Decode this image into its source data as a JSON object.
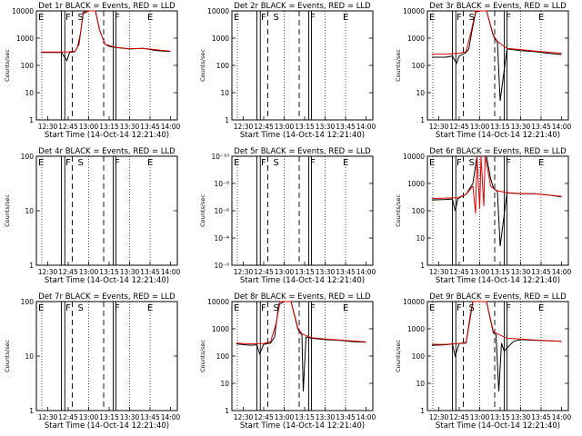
{
  "chart_data": [
    {
      "type": "line",
      "title": "Det 1r BLACK = Events, RED = LLD",
      "xlabel": "Start Time (14-Oct-14 12:21:40)",
      "ylabel": "Counts/sec",
      "yscale": "log",
      "ylim": [
        1,
        10000
      ],
      "yticks": [
        "1",
        "10",
        "100",
        "1000",
        "10000"
      ],
      "xticks": [
        "12:30",
        "12:45",
        "13:00",
        "13:15",
        "13:30",
        "13:45",
        "14:00"
      ],
      "xlim": [
        "12:21:40",
        "14:05"
      ],
      "markers": [
        "E",
        "F",
        "S",
        "F",
        "E"
      ],
      "events": {
        "time": [
          "12:25",
          "12:35",
          "12:40",
          "12:44",
          "12:46",
          "12:50",
          "12:52",
          "12:54",
          "12:56",
          "13:00",
          "13:05",
          "13:08",
          "13:12",
          "13:15",
          "13:20",
          "13:30",
          "13:40",
          "13:50",
          "14:00"
        ],
        "values": [
          300,
          300,
          300,
          150,
          300,
          320,
          500,
          1500,
          8000,
          10000,
          10000,
          2000,
          600,
          500,
          450,
          400,
          420,
          350,
          320
        ]
      },
      "lld": {
        "time": [
          "12:25",
          "12:35",
          "12:44",
          "12:50",
          "12:53",
          "12:56",
          "13:00",
          "13:05",
          "13:08",
          "13:12",
          "13:20",
          "13:30",
          "13:40",
          "14:00"
        ],
        "values": [
          310,
          310,
          310,
          330,
          600,
          9000,
          10000,
          10000,
          2000,
          600,
          460,
          410,
          420,
          330
        ]
      }
    },
    {
      "type": "line",
      "title": "Det 2r BLACK = Events, RED = LLD",
      "xlabel": "Start Time (14-Oct-14 12:21:40)",
      "ylabel": "Counts/sec",
      "yscale": "log",
      "ylim": [
        1,
        10000
      ],
      "yticks": [
        "1",
        "10",
        "100",
        "1000",
        "10000"
      ],
      "xticks": [
        "12:30",
        "12:45",
        "13:00",
        "13:15",
        "13:30",
        "13:45",
        "14:00"
      ],
      "xlim": [
        "12:21:40",
        "14:05"
      ],
      "markers": [
        "E",
        "F",
        "S",
        "F",
        "E"
      ]
    },
    {
      "type": "line",
      "title": "Det 3r BLACK = Events, RED = LLD",
      "xlabel": "Start Time (14-Oct-14 12:21:40)",
      "ylabel": "Counts/sec",
      "yscale": "log",
      "ylim": [
        1,
        10000
      ],
      "yticks": [
        "1",
        "10",
        "100",
        "1000",
        "10000"
      ],
      "xticks": [
        "12:30",
        "12:45",
        "13:00",
        "13:15",
        "13:30",
        "13:45",
        "14:00"
      ],
      "xlim": [
        "12:21:40",
        "14:05"
      ],
      "markers": [
        "E",
        "F",
        "S",
        "F",
        "E"
      ],
      "events": {
        "time": [
          "12:25",
          "12:35",
          "12:40",
          "12:43",
          "12:45",
          "12:50",
          "12:52",
          "12:54",
          "12:57",
          "13:00",
          "13:05",
          "13:10",
          "13:13",
          "13:15",
          "13:20",
          "13:30",
          "13:40",
          "13:50",
          "14:00"
        ],
        "values": [
          200,
          200,
          220,
          120,
          220,
          300,
          400,
          1500,
          9000,
          10000,
          10000,
          1200,
          700,
          5,
          400,
          350,
          320,
          280,
          250
        ]
      },
      "lld": {
        "time": [
          "12:25",
          "12:35",
          "12:45",
          "12:50",
          "12:54",
          "12:57",
          "13:00",
          "13:05",
          "13:10",
          "13:13",
          "13:20",
          "13:30",
          "13:40",
          "14:00"
        ],
        "values": [
          260,
          260,
          280,
          320,
          2000,
          10000,
          10000,
          10000,
          1300,
          750,
          420,
          380,
          340,
          280
        ]
      }
    },
    {
      "type": "line",
      "title": "Det 4r BLACK = Events, RED = LLD",
      "xlabel": "Start Time (14-Oct-14 12:21:40)",
      "ylabel": "Counts/sec",
      "yscale": "log",
      "ylim": [
        1,
        100
      ],
      "yticks": [
        "1",
        "10",
        "100"
      ],
      "xticks": [
        "12:30",
        "12:45",
        "13:00",
        "13:15",
        "13:30",
        "13:45",
        "14:00"
      ],
      "xlim": [
        "12:21:40",
        "14:05"
      ],
      "markers": [
        "E",
        "F",
        "S",
        "F",
        "E"
      ]
    },
    {
      "type": "line",
      "title": "Det 5r BLACK = Events, RED = LLD",
      "xlabel": "Start Time (14-Oct-14 12:21:40)",
      "ylabel": "Counts/sec",
      "yscale": "log",
      "ylim": [
        1.0,
        1e-10
      ],
      "yticks": [
        "10⁻⁰",
        "10⁻⁴",
        "10⁻⁶",
        "10⁻⁸",
        "10⁻¹⁰"
      ],
      "xticks": [
        "12:30",
        "12:45",
        "13:00",
        "13:15",
        "13:30",
        "13:45",
        "14:00"
      ],
      "xlim": [
        "12:21:40",
        "14:05"
      ],
      "markers": [
        "E",
        "F",
        "S",
        "F",
        "E"
      ]
    },
    {
      "type": "line",
      "title": "Det 6r BLACK = Events, RED = LLD",
      "xlabel": "Start Time (14-Oct-14 12:21:40)",
      "ylabel": "Counts/sec",
      "yscale": "log",
      "ylim": [
        1,
        10000
      ],
      "yticks": [
        "1",
        "10",
        "100",
        "1000",
        "10000"
      ],
      "xticks": [
        "12:30",
        "12:45",
        "13:00",
        "13:15",
        "13:30",
        "13:45",
        "14:00"
      ],
      "xlim": [
        "12:21:40",
        "14:05"
      ],
      "markers": [
        "E",
        "F",
        "S",
        "F",
        "E"
      ],
      "events": {
        "time": [
          "12:25",
          "12:35",
          "12:40",
          "12:42",
          "12:44",
          "12:50",
          "12:55",
          "12:58",
          "13:00",
          "13:05",
          "13:08",
          "13:10",
          "13:13",
          "13:15",
          "13:20",
          "13:30",
          "13:40",
          "13:50",
          "14:00"
        ],
        "values": [
          250,
          260,
          270,
          100,
          280,
          400,
          1000,
          10000,
          10000,
          10000,
          1500,
          700,
          500,
          5,
          450,
          420,
          420,
          380,
          320
        ]
      },
      "lld": {
        "time": [
          "12:25",
          "12:35",
          "12:44",
          "12:50",
          "12:55",
          "12:57",
          "12:58",
          "13:00",
          "13:01",
          "13:03",
          "13:04",
          "13:06",
          "13:08",
          "13:12",
          "13:20",
          "13:30",
          "13:40",
          "14:00"
        ],
        "values": [
          280,
          290,
          300,
          400,
          800,
          80,
          10000,
          120,
          10000,
          150,
          10000,
          3000,
          800,
          550,
          460,
          430,
          420,
          340
        ]
      }
    },
    {
      "type": "line",
      "title": "Det 7r BLACK = Events, RED = LLD",
      "xlabel": "Start Time (14-Oct-14 12:21:40)",
      "ylabel": "Counts/sec",
      "yscale": "log",
      "ylim": [
        1,
        100
      ],
      "yticks": [
        "1",
        "10",
        "100"
      ],
      "xticks": [
        "12:30",
        "12:45",
        "13:00",
        "13:15",
        "13:30",
        "13:45",
        "14:00"
      ],
      "xlim": [
        "12:21:40",
        "14:05"
      ],
      "markers": [
        "E",
        "F",
        "S",
        "F",
        "E"
      ]
    },
    {
      "type": "line",
      "title": "Det 8r BLACK = Events, RED = LLD",
      "xlabel": "Start Time (14-Oct-14 12:21:40)",
      "ylabel": "Counts/sec",
      "yscale": "log",
      "ylim": [
        1,
        10000
      ],
      "yticks": [
        "1",
        "10",
        "100",
        "1000",
        "10000"
      ],
      "xticks": [
        "12:30",
        "12:45",
        "13:00",
        "13:15",
        "13:30",
        "13:45",
        "14:00"
      ],
      "xlim": [
        "12:21:40",
        "14:05"
      ],
      "markers": [
        "E",
        "F",
        "S",
        "F",
        "E"
      ],
      "events": {
        "time": [
          "12:25",
          "12:35",
          "12:40",
          "12:42",
          "12:45",
          "12:50",
          "12:53",
          "12:56",
          "13:00",
          "13:05",
          "13:10",
          "13:13",
          "13:14",
          "13:16",
          "13:20",
          "13:30",
          "13:40",
          "13:50",
          "14:00"
        ],
        "values": [
          280,
          250,
          260,
          120,
          270,
          300,
          500,
          8000,
          10000,
          10000,
          1000,
          600,
          5,
          500,
          450,
          400,
          380,
          340,
          320
        ]
      },
      "lld": {
        "time": [
          "12:25",
          "12:35",
          "12:45",
          "12:50",
          "12:54",
          "12:57",
          "13:00",
          "13:05",
          "13:10",
          "13:13",
          "13:20",
          "13:30",
          "13:40",
          "14:00"
        ],
        "values": [
          300,
          280,
          290,
          330,
          1500,
          10000,
          10000,
          10000,
          1100,
          650,
          470,
          420,
          390,
          330
        ]
      }
    },
    {
      "type": "line",
      "title": "Det 9r BLACK = Events, RED = LLD",
      "xlabel": "Start Time (14-Oct-14 12:21:40)",
      "ylabel": "Counts/sec",
      "yscale": "log",
      "ylim": [
        1,
        10000
      ],
      "yticks": [
        "1",
        "10",
        "100",
        "1000",
        "10000"
      ],
      "xticks": [
        "12:30",
        "12:45",
        "13:00",
        "13:15",
        "13:30",
        "13:45",
        "14:00"
      ],
      "xlim": [
        "12:21:40",
        "14:05"
      ],
      "markers": [
        "E",
        "F",
        "S",
        "F",
        "E"
      ],
      "events": {
        "time": [
          "12:25",
          "12:35",
          "12:40",
          "12:42",
          "12:45",
          "12:50",
          "12:52",
          "12:55",
          "13:00",
          "13:05",
          "13:10",
          "13:12",
          "13:14",
          "13:16",
          "13:18",
          "13:20",
          "13:25",
          "13:30",
          "13:40",
          "14:00"
        ],
        "values": [
          250,
          260,
          280,
          100,
          290,
          300,
          1200,
          10000,
          10000,
          10000,
          700,
          600,
          5,
          300,
          150,
          200,
          350,
          400,
          380,
          350
        ]
      },
      "lld": {
        "time": [
          "12:25",
          "12:35",
          "12:45",
          "12:50",
          "12:53",
          "12:55",
          "13:00",
          "13:05",
          "13:10",
          "13:13",
          "13:20",
          "13:30",
          "13:40",
          "14:00"
        ],
        "values": [
          270,
          270,
          290,
          320,
          3000,
          10000,
          10000,
          10000,
          800,
          650,
          450,
          420,
          390,
          350
        ]
      }
    }
  ]
}
